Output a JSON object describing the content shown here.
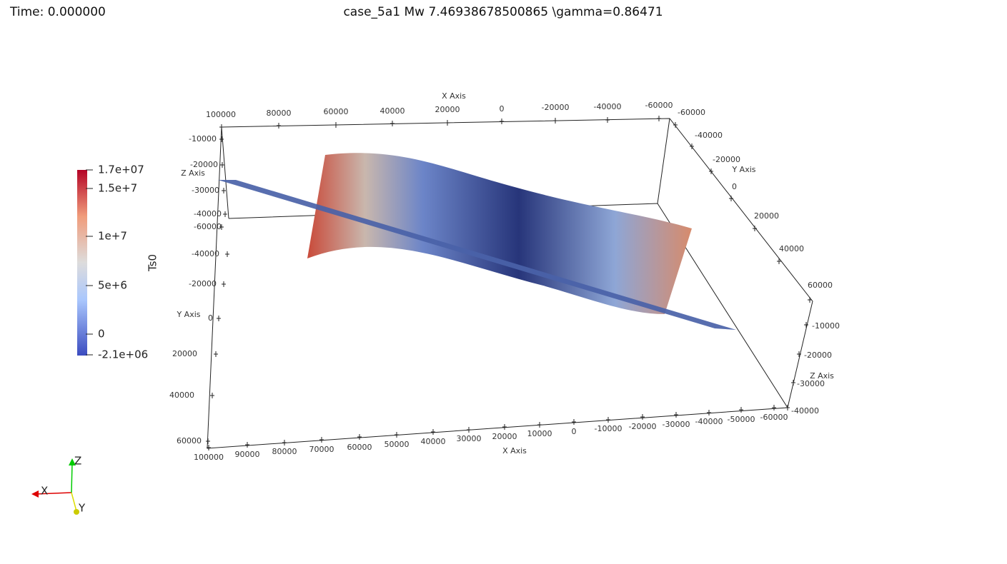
{
  "header": {
    "time": "Time: 0.000000",
    "title": "case_5a1 Mw  7.46938678500865   \\gamma=0.86471"
  },
  "colorbar": {
    "title": "Ts0",
    "labels": [
      "1.7e+07",
      "1.5e+7",
      "1e+7",
      "5e+6",
      "0",
      "-2.1e+06"
    ]
  },
  "axes": {
    "top_x": {
      "title": "X Axis",
      "ticks": [
        "100000",
        "80000",
        "60000",
        "40000",
        "20000",
        "0",
        "-20000",
        "-40000",
        "-60000"
      ]
    },
    "left_z": {
      "title": "Z Axis",
      "ticks": [
        "-10000",
        "-20000",
        "-30000",
        "-40000"
      ]
    },
    "left_y": {
      "title": "Y Axis",
      "ticks": [
        "-60000",
        "-40000",
        "-20000",
        "0",
        "20000",
        "40000",
        "60000"
      ]
    },
    "bottom_x": {
      "title": "X Axis",
      "ticks": [
        "100000",
        "90000",
        "80000",
        "70000",
        "60000",
        "50000",
        "40000",
        "30000",
        "20000",
        "10000",
        "0",
        "-10000",
        "-20000",
        "-30000",
        "-40000",
        "-50000",
        "-60000"
      ]
    },
    "right_y": {
      "title": "Y Axis",
      "ticks": [
        "-60000",
        "-40000",
        "-20000",
        "0",
        "20000",
        "40000",
        "60000"
      ]
    },
    "right_z": {
      "title": "Z Axis",
      "ticks": [
        "-10000",
        "-20000",
        "-30000",
        "-40000"
      ]
    }
  },
  "orientation": {
    "x": "X",
    "y": "Y",
    "z": "Z"
  }
}
